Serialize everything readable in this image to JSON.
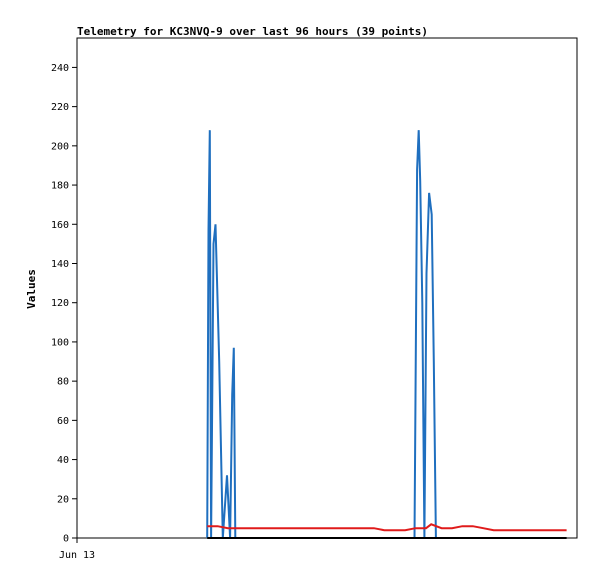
{
  "chart_data": {
    "type": "line",
    "title": "Telemetry for KC3NVQ-9 over last 96 hours (39 points)",
    "xlabel": "",
    "ylabel": "Values",
    "ylim": [
      0,
      255
    ],
    "yticks": [
      0,
      20,
      40,
      60,
      80,
      100,
      120,
      140,
      160,
      180,
      200,
      220,
      240
    ],
    "xlim": [
      0,
      96
    ],
    "xticks": [
      {
        "x": 0,
        "label": "Jun 13"
      }
    ],
    "grid": false,
    "legend": "none",
    "series": [
      {
        "color": "#1f6fbf",
        "x": [
          25.0,
          25.25,
          25.5,
          25.75,
          26.2,
          26.6,
          27.3,
          28.0,
          28.8,
          29.4,
          29.8,
          30.1,
          30.4,
          64.8,
          65.3,
          65.6,
          65.9,
          66.3,
          66.7,
          67.1,
          67.6,
          68.1,
          68.5,
          68.9,
          69.4
        ],
        "y": [
          0,
          157,
          208,
          0,
          150,
          160,
          90,
          0,
          32,
          0,
          73,
          97,
          0,
          0,
          188,
          208,
          182,
          120,
          0,
          135,
          176,
          165,
          90,
          0,
          0
        ]
      },
      {
        "color": "#e01b1b",
        "x": [
          25,
          27,
          29,
          31,
          33,
          35,
          37,
          39,
          41,
          43,
          45,
          47,
          49,
          51,
          53,
          55,
          57,
          59,
          61,
          63,
          65,
          67,
          68,
          70,
          72,
          74,
          76,
          78,
          80,
          82,
          84,
          86,
          88,
          90,
          92,
          94
        ],
        "y": [
          6,
          6,
          5,
          5,
          5,
          5,
          5,
          5,
          5,
          5,
          5,
          5,
          5,
          5,
          5,
          5,
          5,
          4,
          4,
          4,
          5,
          5,
          7,
          5,
          5,
          6,
          6,
          5,
          4,
          4,
          4,
          4,
          4,
          4,
          4,
          4
        ]
      },
      {
        "color": "#000000",
        "x": [
          25,
          94
        ],
        "y": [
          0,
          0
        ]
      }
    ]
  }
}
